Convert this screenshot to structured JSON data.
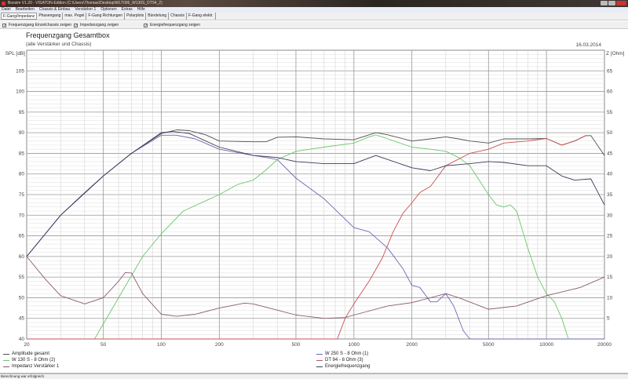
{
  "window": {
    "title": "Boxsim V1.20 - VISATON-Edition (C:\\Users\\Thomas\\Desktop\\WLT006_W130S_DT94_2)"
  },
  "menu": [
    "Datei",
    "Bearbeiten",
    "Chassis & Einbau",
    "Verstärker 1",
    "Optionen",
    "Extras",
    "Hilfe"
  ],
  "tabs": [
    {
      "label": "F-Gang/Impedanz",
      "active": true
    },
    {
      "label": "Phasengang"
    },
    {
      "label": "max. Pegel"
    },
    {
      "label": "F-Gang Richtungen"
    },
    {
      "label": "Polarplots"
    },
    {
      "label": "Bündelung"
    },
    {
      "label": "Chassis"
    },
    {
      "label": "F-Gang elektr."
    }
  ],
  "options": [
    {
      "label": "Frequenzgang Einzelchassis zeigen",
      "checked": true
    },
    {
      "label": "Impedanzgang zeigen",
      "checked": true
    },
    {
      "label": "Energiefrequenzgang zeigen",
      "checked": true
    }
  ],
  "chart": {
    "title": "Frequenzgang Gesamtbox",
    "subtitle": "(alle Verstärker und Chassis)",
    "date": "16.03.2014"
  },
  "chart_data": {
    "type": "line",
    "x_scale": "log",
    "xlim": [
      20,
      20000
    ],
    "x_ticks": [
      20,
      50,
      100,
      200,
      500,
      1000,
      2000,
      5000,
      10000,
      20000
    ],
    "ylabel": "SPL [dB]",
    "ylim": [
      40,
      110
    ],
    "y_ticks": [
      40,
      45,
      50,
      55,
      60,
      65,
      70,
      75,
      80,
      85,
      90,
      95,
      100,
      105
    ],
    "y2label": "Z [Ohm]",
    "y2lim": [
      0,
      70
    ],
    "y2_ticks": [
      5,
      10,
      15,
      20,
      25,
      30,
      35,
      40,
      45,
      50,
      55,
      60,
      65
    ],
    "grid": true,
    "legend_position": "bottom",
    "series": [
      {
        "name": "Amplitude gesamt",
        "axis": "left",
        "color": "#505050",
        "points": [
          [
            20,
            60
          ],
          [
            30,
            70
          ],
          [
            40,
            75.5
          ],
          [
            50,
            79.5
          ],
          [
            70,
            85
          ],
          [
            100,
            89.8
          ],
          [
            120,
            90.7
          ],
          [
            140,
            90.5
          ],
          [
            170,
            89.5
          ],
          [
            200,
            88
          ],
          [
            300,
            87.8
          ],
          [
            350,
            87.8
          ],
          [
            400,
            88.9
          ],
          [
            500,
            89
          ],
          [
            700,
            88.5
          ],
          [
            1000,
            88.3
          ],
          [
            1200,
            89.5
          ],
          [
            1300,
            90
          ],
          [
            1500,
            89.5
          ],
          [
            2000,
            88
          ],
          [
            2500,
            88.5
          ],
          [
            3000,
            89
          ],
          [
            3500,
            88.5
          ],
          [
            4000,
            88
          ],
          [
            5000,
            87.5
          ],
          [
            6000,
            88.5
          ],
          [
            8000,
            88.5
          ],
          [
            10000,
            88.6
          ],
          [
            12000,
            87
          ],
          [
            14000,
            88
          ],
          [
            16000,
            89.3
          ],
          [
            17000,
            89.3
          ],
          [
            20000,
            84.5
          ]
        ]
      },
      {
        "name": "W 250 S - 8 Ohm (1)",
        "axis": "left",
        "color": "#6868b0",
        "points": [
          [
            20,
            60
          ],
          [
            30,
            70
          ],
          [
            50,
            79.5
          ],
          [
            70,
            85
          ],
          [
            100,
            89.4
          ],
          [
            120,
            89.4
          ],
          [
            150,
            88.5
          ],
          [
            200,
            86
          ],
          [
            300,
            84.5
          ],
          [
            350,
            84
          ],
          [
            400,
            83.5
          ],
          [
            500,
            79
          ],
          [
            700,
            74
          ],
          [
            1000,
            67
          ],
          [
            1200,
            66
          ],
          [
            1500,
            62
          ],
          [
            1800,
            57
          ],
          [
            2000,
            53
          ],
          [
            2200,
            52.5
          ],
          [
            2500,
            49
          ],
          [
            2700,
            49
          ],
          [
            3000,
            51
          ],
          [
            3300,
            48
          ],
          [
            3700,
            42
          ],
          [
            4000,
            40
          ],
          [
            20000,
            40
          ]
        ]
      },
      {
        "name": "W 130 S - 8 Ohm (2)",
        "axis": "left",
        "color": "#6cc66c",
        "points": [
          [
            20,
            40
          ],
          [
            45,
            40
          ],
          [
            60,
            50
          ],
          [
            80,
            60
          ],
          [
            100,
            65.5
          ],
          [
            130,
            71
          ],
          [
            200,
            75
          ],
          [
            250,
            77.5
          ],
          [
            300,
            78.5
          ],
          [
            350,
            81
          ],
          [
            400,
            83.5
          ],
          [
            500,
            85.5
          ],
          [
            700,
            86.5
          ],
          [
            1000,
            87.5
          ],
          [
            1200,
            89
          ],
          [
            1300,
            89.5
          ],
          [
            1500,
            88.5
          ],
          [
            2000,
            86.5
          ],
          [
            2500,
            86
          ],
          [
            3000,
            85.5
          ],
          [
            3500,
            84
          ],
          [
            4000,
            82
          ],
          [
            5000,
            75
          ],
          [
            5500,
            72.5
          ],
          [
            6000,
            72
          ],
          [
            6500,
            72.5
          ],
          [
            7000,
            71
          ],
          [
            8000,
            62
          ],
          [
            9000,
            55
          ],
          [
            10000,
            51
          ],
          [
            11000,
            49
          ],
          [
            12000,
            45
          ],
          [
            13000,
            40
          ]
        ]
      },
      {
        "name": "DT 94 - 8 Ohm (3)",
        "axis": "left",
        "color": "#c85050",
        "points": [
          [
            20,
            40
          ],
          [
            820,
            40
          ],
          [
            900,
            45
          ],
          [
            1000,
            48.5
          ],
          [
            1200,
            54
          ],
          [
            1400,
            59.5
          ],
          [
            1600,
            66
          ],
          [
            1800,
            70.5
          ],
          [
            2000,
            73
          ],
          [
            2200,
            75.5
          ],
          [
            2500,
            77
          ],
          [
            3000,
            82
          ],
          [
            4000,
            85
          ],
          [
            5000,
            86
          ],
          [
            6000,
            87.5
          ],
          [
            8000,
            88
          ],
          [
            10000,
            88.6
          ],
          [
            12000,
            87
          ],
          [
            14000,
            88
          ],
          [
            16000,
            89.3
          ]
        ]
      },
      {
        "name": "Impedanz Verstärker 1",
        "axis": "right",
        "color": "#8a5a6e",
        "points": [
          [
            20,
            20
          ],
          [
            25,
            14.5
          ],
          [
            30,
            10.5
          ],
          [
            40,
            8.5
          ],
          [
            50,
            10
          ],
          [
            60,
            14
          ],
          [
            65,
            16.1
          ],
          [
            70,
            16
          ],
          [
            80,
            11
          ],
          [
            100,
            6
          ],
          [
            120,
            5.5
          ],
          [
            150,
            6
          ],
          [
            200,
            7.5
          ],
          [
            270,
            8.7
          ],
          [
            300,
            8.5
          ],
          [
            400,
            7
          ],
          [
            500,
            5.8
          ],
          [
            700,
            5
          ],
          [
            900,
            5.2
          ],
          [
            1000,
            5.8
          ],
          [
            1500,
            8
          ],
          [
            2000,
            8.8
          ],
          [
            2500,
            10
          ],
          [
            3000,
            11
          ],
          [
            3500,
            10
          ],
          [
            5000,
            7.2
          ],
          [
            7000,
            8
          ],
          [
            10000,
            10.5
          ],
          [
            15000,
            12.5
          ],
          [
            20000,
            15
          ]
        ]
      },
      {
        "name": "Energiefrequenzgang",
        "axis": "left",
        "color": "#3a3a58",
        "points": [
          [
            20,
            60
          ],
          [
            30,
            70
          ],
          [
            50,
            79.5
          ],
          [
            70,
            85
          ],
          [
            100,
            90
          ],
          [
            115,
            90.3
          ],
          [
            140,
            89.8
          ],
          [
            200,
            86.5
          ],
          [
            300,
            84.5
          ],
          [
            400,
            84
          ],
          [
            500,
            83
          ],
          [
            700,
            82.5
          ],
          [
            1000,
            82.5
          ],
          [
            1300,
            84.5
          ],
          [
            1500,
            83.5
          ],
          [
            2000,
            81.5
          ],
          [
            2500,
            80.8
          ],
          [
            3000,
            82
          ],
          [
            4000,
            82.5
          ],
          [
            5000,
            83
          ],
          [
            6000,
            82.8
          ],
          [
            8000,
            82
          ],
          [
            10000,
            82
          ],
          [
            12000,
            79.5
          ],
          [
            14000,
            78.5
          ],
          [
            17000,
            78.8
          ],
          [
            20000,
            72.5
          ]
        ]
      }
    ]
  },
  "status": "Berechnung war erfolgreich"
}
